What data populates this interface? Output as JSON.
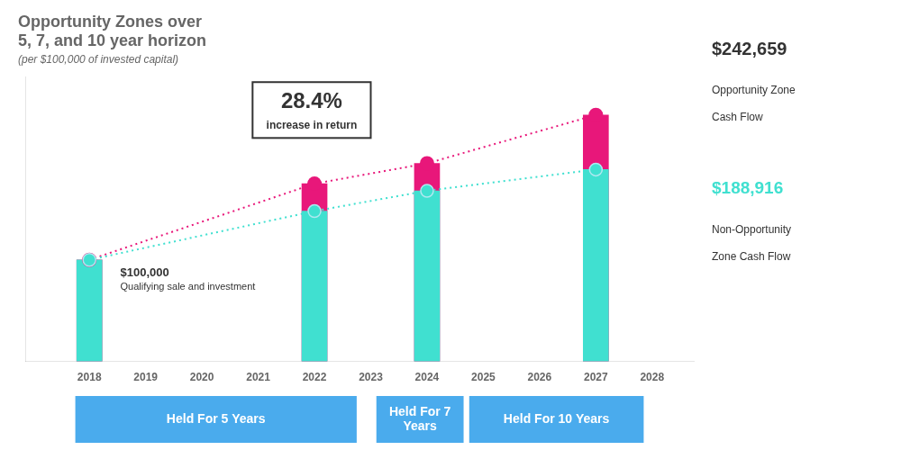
{
  "chart_data": {
    "type": "bar",
    "title": [
      "Opportunity Zones over",
      "5, 7, and 10 year horizon"
    ],
    "subtitle": "(per $100,000 of invested capital)",
    "x": [
      2018,
      2022,
      2024,
      2027
    ],
    "series": [
      {
        "color": "#40e0d0",
        "values": [
          100000,
          148000,
          168000,
          188916
        ],
        "marker": "circle",
        "line_style": "dotted"
      },
      {
        "color": "#e8177a",
        "values": [
          100000,
          175000,
          195000,
          242659
        ],
        "marker": "circle",
        "line_style": "dotted"
      }
    ],
    "xlim": [
      2017.4,
      2028.2
    ],
    "xticks": [
      2018,
      2019,
      2020,
      2021,
      2022,
      2023,
      2024,
      2025,
      2026,
      2027,
      2028
    ],
    "ylim": [
      0,
      280000
    ],
    "tick_labels": "x",
    "grid": false,
    "annotations": [
      "$100,000",
      "Qualifying sale and investment",
      "28.4%",
      "increase in return",
      "$242,659",
      "Opportunity Zone",
      "Cash Flow",
      "$188,916",
      "Non-Opportunity",
      "Zone Cash Flow",
      "Held For 5 Years",
      "Held For 7\nYears",
      "Held For 10 Years"
    ]
  }
}
